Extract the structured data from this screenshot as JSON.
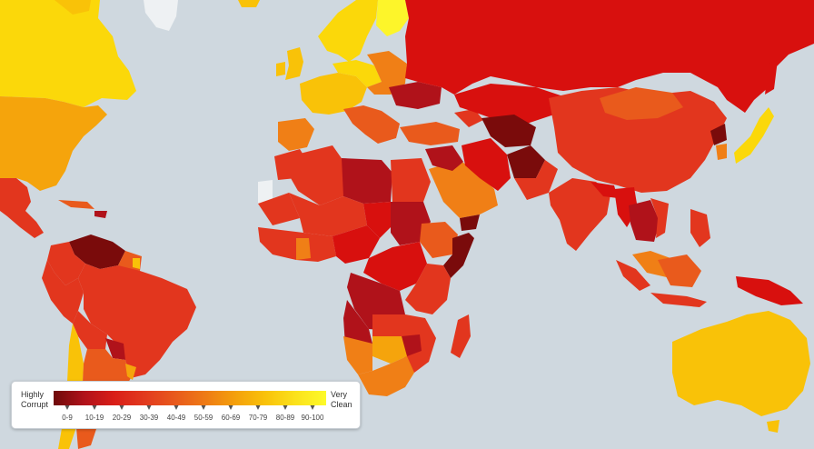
{
  "legend": {
    "left_label_line1": "Highly",
    "left_label_line2": "Corrupt",
    "right_label_line1": "Very",
    "right_label_line2": "Clean",
    "ranges": [
      "0-9",
      "10-19",
      "20-29",
      "30-39",
      "40-49",
      "50-59",
      "60-69",
      "70-79",
      "80-89",
      "90-100"
    ],
    "gradient_colors": [
      "#6e0a0a",
      "#b0121a",
      "#d91e18",
      "#e23a1e",
      "#e8591c",
      "#ee7a15",
      "#f4a00b",
      "#f9c20a",
      "#fbe21c",
      "#fdfa2a"
    ]
  },
  "colors": {
    "ocean": "#cfd8df",
    "no_data": "#eef1f3",
    "score_0_9": "#7a0b0b",
    "score_10_19": "#b0121a",
    "score_20_29": "#d8100e",
    "score_30_39": "#e2361e",
    "score_40_49": "#e95a1c",
    "score_50_59": "#f07f16",
    "score_60_69": "#f5a40c",
    "score_70_79": "#f9c208",
    "score_80_89": "#fbd80a",
    "score_90_100": "#fdf52a"
  }
}
